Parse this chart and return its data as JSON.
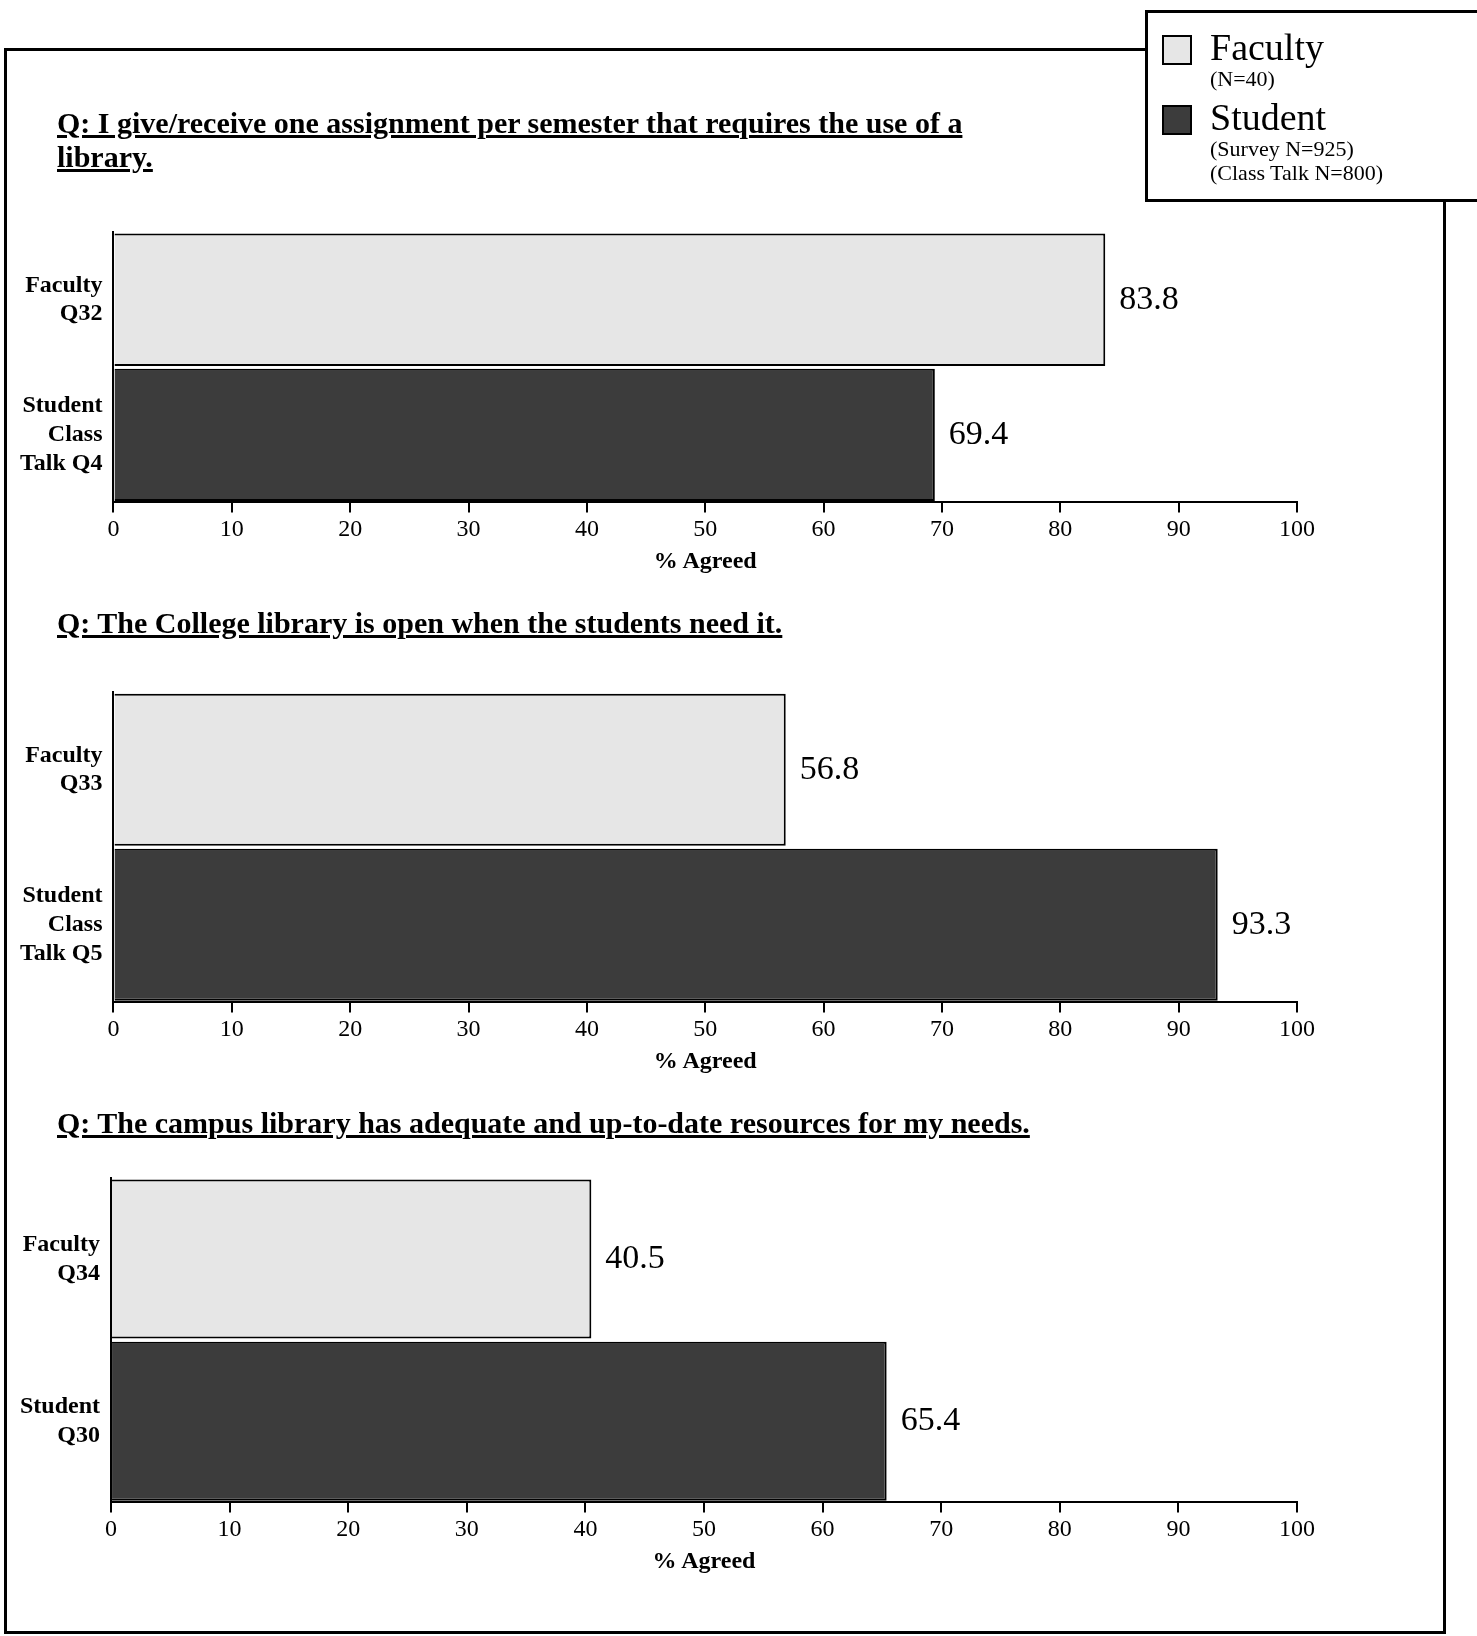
{
  "chart_data": [
    {
      "type": "bar",
      "orientation": "horizontal",
      "stacked": true,
      "title": "Q: I give/receive one assignment per semester that requires the use of a library.",
      "categories": [
        "Faculty Q32",
        "Student Class Talk Q4"
      ],
      "series": [
        {
          "name": "Faculty (N=40)",
          "color": "#e6e6e6",
          "values": [
            83.8,
            null
          ]
        },
        {
          "name": "Student (Survey N=925) (Class Talk N=800)",
          "color": "#3c3c3c",
          "values": [
            null,
            69.4
          ]
        }
      ],
      "xlim": [
        0,
        100
      ],
      "xticks": [
        0,
        10,
        20,
        30,
        40,
        50,
        60,
        70,
        80,
        90,
        100
      ],
      "xlabel": "% Agreed",
      "data_labels": true,
      "legend": "top right",
      "grid": false
    },
    {
      "type": "bar",
      "orientation": "horizontal",
      "stacked": true,
      "title": "Q: The College library is open when the students need it.",
      "categories": [
        "Faculty Q33",
        "Student Class Talk Q5"
      ],
      "series": [
        {
          "color": "#e6e6e6",
          "values": [
            56.8,
            null
          ]
        },
        {
          "color": "#3c3c3c",
          "values": [
            null,
            93.3
          ]
        }
      ],
      "xlim": [
        0,
        100
      ],
      "xticks": [
        0,
        10,
        20,
        30,
        40,
        50,
        60,
        70,
        80,
        90,
        100
      ],
      "xlabel": "% Agreed",
      "data_labels": true,
      "grid": false
    },
    {
      "type": "bar",
      "orientation": "horizontal",
      "stacked": true,
      "title": "Q: The campus library has adequate and up-to-date resources for my needs.",
      "categories": [
        "Faculty Q34",
        "Student Q30"
      ],
      "series": [
        {
          "color": "#e6e6e6",
          "values": [
            40.5,
            null
          ]
        },
        {
          "color": "#3c3c3c",
          "values": [
            null,
            65.4
          ]
        }
      ],
      "xlim": [
        0,
        100
      ],
      "xticks": [
        0,
        10,
        20,
        30,
        40,
        50,
        60,
        70,
        80,
        90,
        100
      ],
      "xlabel": "% Agreed",
      "data_labels": true,
      "grid": false
    }
  ]
}
